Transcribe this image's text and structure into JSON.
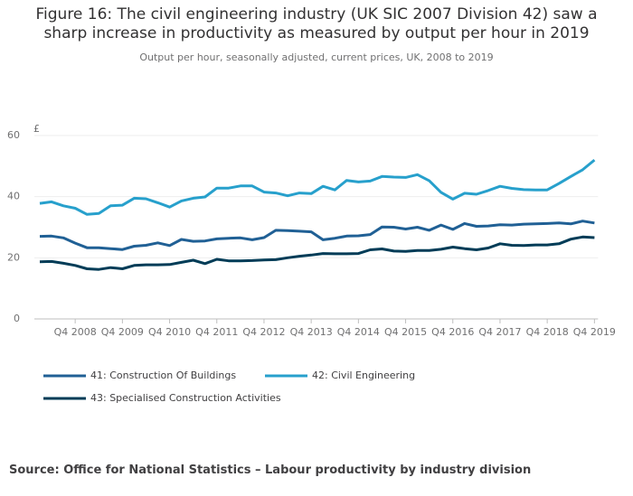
{
  "chart_data": {
    "type": "line",
    "title": "Figure 16: The civil engineering industry (UK SIC 2007 Division 42) saw a sharp increase in productivity as measured by output per hour in 2019",
    "subtitle": "Output per hour, seasonally adjusted, current prices, UK, 2008 to 2019",
    "y_label": "£",
    "source": "Source: Office for National Statistics – Labour productivity by industry division",
    "categories": [
      null,
      null,
      null,
      "Q4 2008",
      null,
      null,
      null,
      "Q4 2009",
      null,
      null,
      null,
      "Q4 2010",
      null,
      null,
      null,
      "Q4 2011",
      null,
      null,
      null,
      "Q4 2012",
      null,
      null,
      null,
      "Q4 2013",
      null,
      null,
      null,
      "Q4 2014",
      null,
      null,
      null,
      "Q4 2015",
      null,
      null,
      null,
      "Q4 2016",
      null,
      null,
      null,
      "Q4 2017",
      null,
      null,
      null,
      "Q4 2018",
      null,
      null,
      null,
      "Q4 2019"
    ],
    "ylim": [
      0,
      60
    ],
    "yticks": [
      0,
      20,
      40,
      60
    ],
    "grid": true,
    "series": [
      {
        "name": "41: Construction Of Buildings",
        "color": "#206095",
        "values": [
          27,
          27.1,
          26.5,
          24.8,
          23.3,
          23.3,
          23,
          22.7,
          23.8,
          24.1,
          24.9,
          24,
          26,
          25.4,
          25.5,
          26.2,
          26.4,
          26.5,
          25.9,
          26.6,
          29,
          28.9,
          28.7,
          28.5,
          25.9,
          26.4,
          27.1,
          27.2,
          27.6,
          30.1,
          30,
          29.4,
          30,
          29,
          30.7,
          29.3,
          31.2,
          30.3,
          30.4,
          30.8,
          30.7,
          31,
          31.1,
          31.2,
          31.4,
          31.1,
          32,
          31.4
        ]
      },
      {
        "name": "42: Civil Engineering",
        "color": "#27a0cc",
        "values": [
          37.8,
          38.3,
          37,
          36.2,
          34.2,
          34.5,
          37,
          37.2,
          39.5,
          39.3,
          38,
          36.6,
          38.6,
          39.5,
          39.9,
          42.8,
          42.8,
          43.5,
          43.5,
          41.5,
          41.2,
          40.3,
          41.2,
          41,
          43.4,
          42.2,
          45.3,
          44.8,
          45.1,
          46.6,
          46.4,
          46.3,
          47.2,
          45.2,
          41.4,
          39.2,
          41.1,
          40.8,
          42,
          43.4,
          42.7,
          42.3,
          42.2,
          42.2,
          44.3,
          46.6,
          48.8,
          52
        ]
      },
      {
        "name": "43: Specialised Construction Activities",
        "color": "#003c57",
        "values": [
          18.7,
          18.8,
          18.2,
          17.5,
          16.4,
          16.2,
          16.8,
          16.4,
          17.5,
          17.7,
          17.7,
          17.8,
          18.5,
          19.2,
          18.1,
          19.5,
          19,
          19,
          19.1,
          19.3,
          19.4,
          20,
          20.5,
          20.9,
          21.4,
          21.3,
          21.3,
          21.4,
          22.6,
          22.9,
          22.2,
          22.1,
          22.4,
          22.4,
          22.8,
          23.5,
          23,
          22.6,
          23.2,
          24.6,
          24.1,
          24,
          24.2,
          24.2,
          24.6,
          26.1,
          26.8,
          26.6
        ]
      }
    ]
  }
}
